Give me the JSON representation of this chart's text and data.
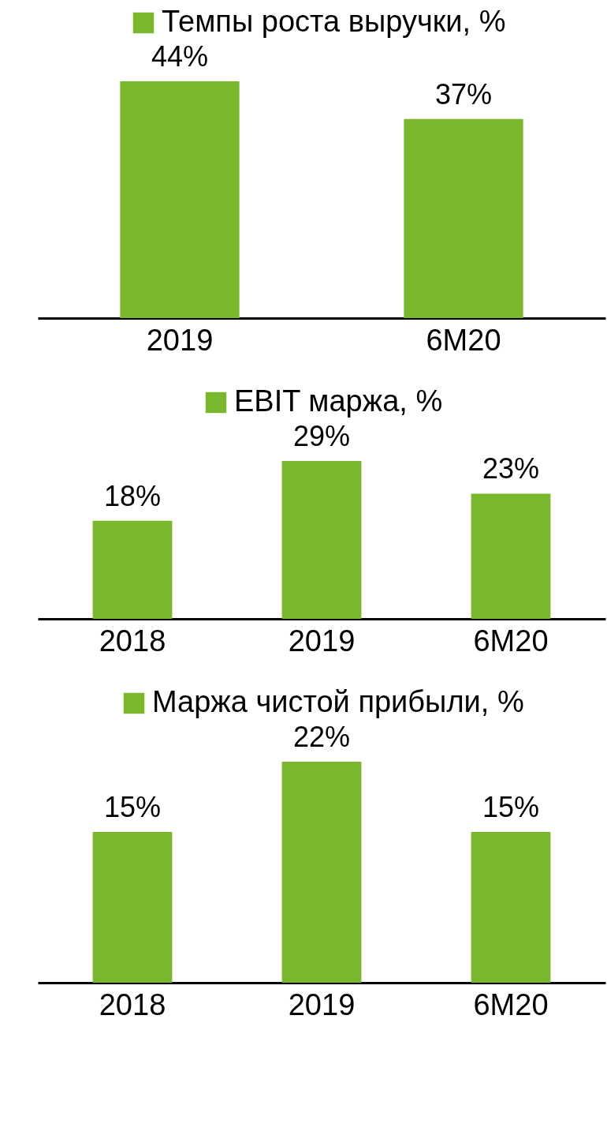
{
  "chart_data": [
    {
      "type": "bar",
      "categories": [
        "2019",
        "6M20"
      ],
      "series": [
        {
          "name": "Темпы  роста выручки, %",
          "color": "#79b82c",
          "values": [
            44,
            37
          ],
          "value_labels": [
            "44%",
            "37%"
          ]
        }
      ],
      "tick_labels": "x",
      "legend": "top"
    },
    {
      "type": "bar",
      "categories": [
        "2018",
        "2019",
        "6M20"
      ],
      "series": [
        {
          "name": "EBIT маржа, %",
          "color": "#79b82c",
          "values": [
            18,
            29,
            23
          ],
          "value_labels": [
            "18%",
            "29%",
            "23%"
          ]
        }
      ],
      "tick_labels": "x",
      "legend": "top"
    },
    {
      "type": "bar",
      "categories": [
        "2018",
        "2019",
        "6M20"
      ],
      "series": [
        {
          "name": "Маржа чистой прибыли, %",
          "color": "#79b82c",
          "values": [
            15,
            22,
            15
          ],
          "value_labels": [
            "15%",
            "22%",
            "15%"
          ]
        }
      ],
      "tick_labels": "x",
      "legend": "top"
    }
  ]
}
